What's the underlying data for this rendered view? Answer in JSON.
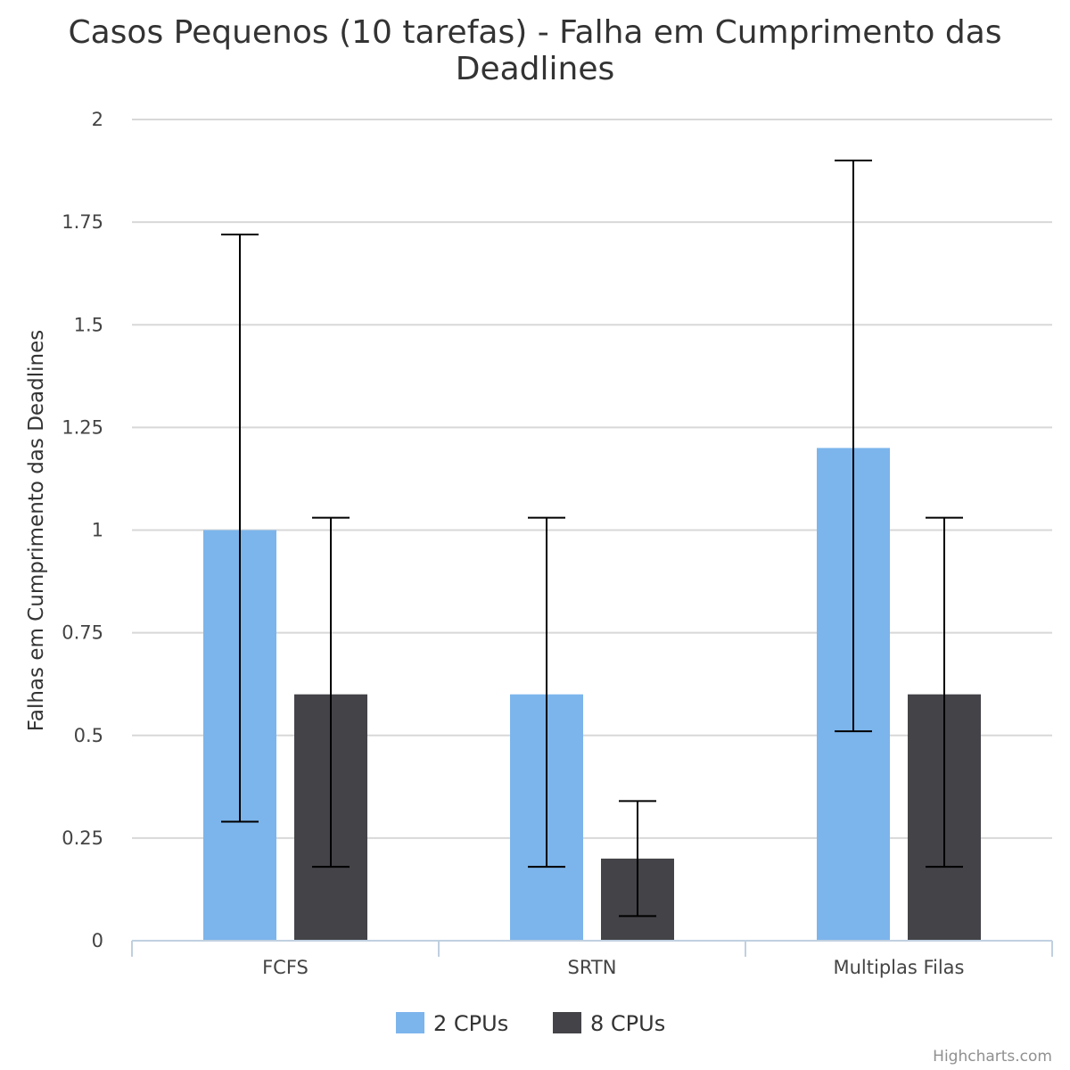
{
  "chart_data": {
    "type": "bar",
    "title_lines": [
      "Casos Pequenos (10 tarefas) - Falha em Cumprimento das",
      "Deadlines"
    ],
    "ylabel": "Falhas em Cumprimento das Deadlines",
    "xlabel": "",
    "categories": [
      "FCFS",
      "SRTN",
      "Multiplas Filas"
    ],
    "ylim": [
      0,
      2
    ],
    "yticks": [
      0,
      0.25,
      0.5,
      0.75,
      1,
      1.25,
      1.5,
      1.75,
      2
    ],
    "ytick_labels": [
      "0",
      "0.25",
      "0.5",
      "0.75",
      "1",
      "1.25",
      "1.5",
      "1.75",
      "2"
    ],
    "grid": true,
    "legend_position": "bottom-center",
    "series": [
      {
        "name": "2 CPUs",
        "color": "#7cb5ec",
        "values": [
          1.0,
          0.6,
          1.2
        ],
        "error_low": [
          0.29,
          0.18,
          0.51
        ],
        "error_high": [
          1.72,
          1.03,
          1.9
        ]
      },
      {
        "name": "8 CPUs",
        "color": "#434348",
        "values": [
          0.6,
          0.2,
          0.6
        ],
        "error_low": [
          0.18,
          0.06,
          0.18
        ],
        "error_high": [
          1.03,
          0.34,
          1.03
        ]
      }
    ],
    "credits": "Highcharts.com"
  }
}
